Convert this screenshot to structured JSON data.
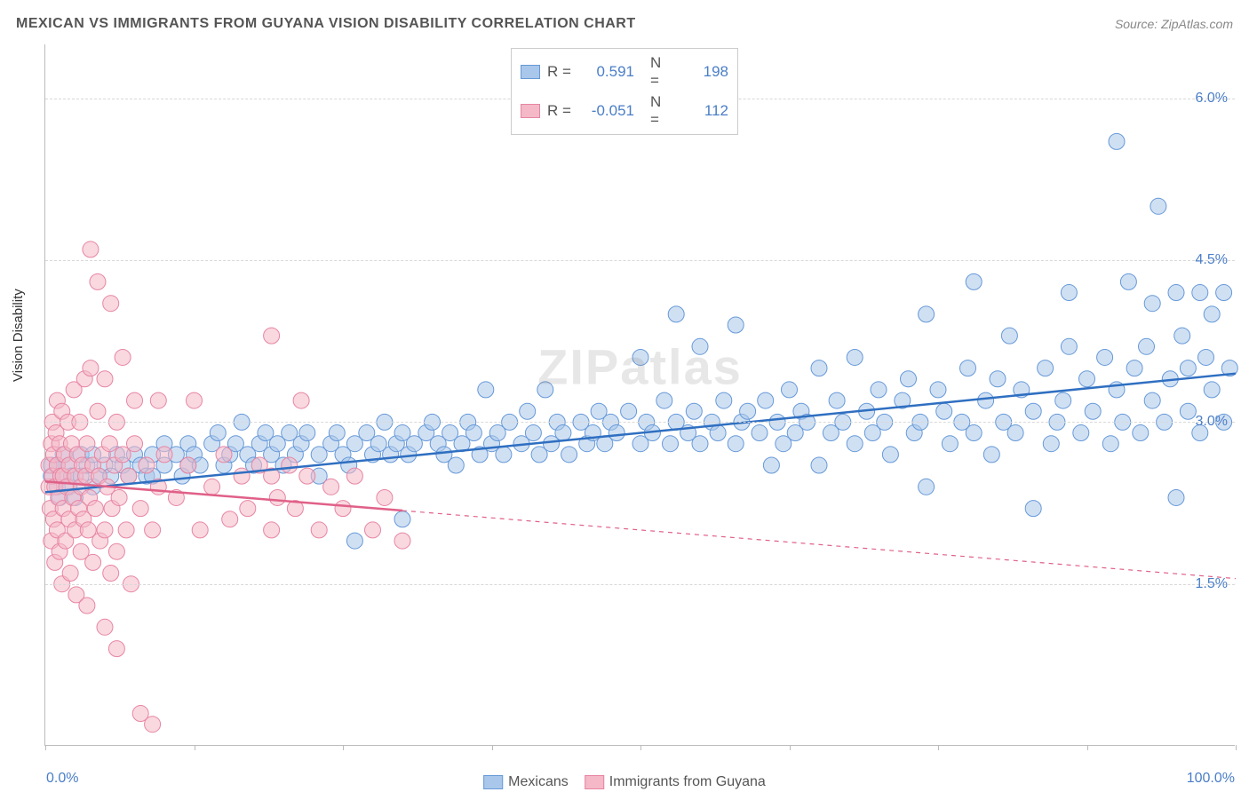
{
  "title": "MEXICAN VS IMMIGRANTS FROM GUYANA VISION DISABILITY CORRELATION CHART",
  "source": "Source: ZipAtlas.com",
  "watermark": "ZIPatlas",
  "ylabel": "Vision Disability",
  "chart": {
    "type": "scatter",
    "background_color": "#ffffff",
    "grid_color": "#d8d8d8",
    "axis_color": "#bbbbbb",
    "tick_label_color": "#4a7ec7",
    "xlim": [
      0,
      100
    ],
    "ylim": [
      0,
      6.5
    ],
    "xticks_minor": [
      0,
      12.5,
      25,
      37.5,
      50,
      62.5,
      75,
      87.5,
      100
    ],
    "yticks": [
      1.5,
      3.0,
      4.5,
      6.0
    ],
    "ytick_labels": [
      "1.5%",
      "3.0%",
      "4.5%",
      "6.0%"
    ],
    "xtick_labels": {
      "left": "0.0%",
      "right": "100.0%"
    },
    "marker_radius": 9,
    "marker_opacity": 0.55,
    "line_width": 2.5,
    "series": [
      {
        "name": "Mexicans",
        "color_fill": "#a9c7ea",
        "color_stroke": "#6699d8",
        "line_color": "#2f6fc1",
        "r": 0.591,
        "n": 198,
        "regression": {
          "x1": 0,
          "y1": 2.35,
          "x2": 100,
          "y2": 3.45,
          "solid_until": 100
        },
        "points": [
          [
            0.5,
            2.5
          ],
          [
            0.5,
            2.6
          ],
          [
            1,
            2.4
          ],
          [
            1,
            2.6
          ],
          [
            1.2,
            2.3
          ],
          [
            1.5,
            2.5
          ],
          [
            1.5,
            2.7
          ],
          [
            2,
            2.4
          ],
          [
            2,
            2.6
          ],
          [
            2.2,
            2.5
          ],
          [
            2.5,
            2.3
          ],
          [
            3,
            2.5
          ],
          [
            3,
            2.7
          ],
          [
            3.5,
            2.6
          ],
          [
            4,
            2.4
          ],
          [
            4,
            2.7
          ],
          [
            4.5,
            2.5
          ],
          [
            5,
            2.6
          ],
          [
            5.5,
            2.5
          ],
          [
            6,
            2.7
          ],
          [
            6.5,
            2.6
          ],
          [
            7,
            2.5
          ],
          [
            7.5,
            2.7
          ],
          [
            8,
            2.6
          ],
          [
            8.5,
            2.5
          ],
          [
            9,
            2.7
          ],
          [
            9,
            2.5
          ],
          [
            10,
            2.6
          ],
          [
            10,
            2.8
          ],
          [
            11,
            2.7
          ],
          [
            11.5,
            2.5
          ],
          [
            12,
            2.6
          ],
          [
            12,
            2.8
          ],
          [
            12.5,
            2.7
          ],
          [
            13,
            2.6
          ],
          [
            14,
            2.8
          ],
          [
            14.5,
            2.9
          ],
          [
            15,
            2.6
          ],
          [
            15.5,
            2.7
          ],
          [
            16,
            2.8
          ],
          [
            16.5,
            3.0
          ],
          [
            17,
            2.7
          ],
          [
            17.5,
            2.6
          ],
          [
            18,
            2.8
          ],
          [
            18.5,
            2.9
          ],
          [
            19,
            2.7
          ],
          [
            19.5,
            2.8
          ],
          [
            20,
            2.6
          ],
          [
            20.5,
            2.9
          ],
          [
            21,
            2.7
          ],
          [
            21.5,
            2.8
          ],
          [
            22,
            2.9
          ],
          [
            23,
            2.7
          ],
          [
            23,
            2.5
          ],
          [
            24,
            2.8
          ],
          [
            24.5,
            2.9
          ],
          [
            25,
            2.7
          ],
          [
            25.5,
            2.6
          ],
          [
            26,
            2.8
          ],
          [
            26,
            1.9
          ],
          [
            27,
            2.9
          ],
          [
            27.5,
            2.7
          ],
          [
            28,
            2.8
          ],
          [
            28.5,
            3.0
          ],
          [
            29,
            2.7
          ],
          [
            29.5,
            2.8
          ],
          [
            30,
            2.1
          ],
          [
            30,
            2.9
          ],
          [
            30.5,
            2.7
          ],
          [
            31,
            2.8
          ],
          [
            32,
            2.9
          ],
          [
            32.5,
            3.0
          ],
          [
            33,
            2.8
          ],
          [
            33.5,
            2.7
          ],
          [
            34,
            2.9
          ],
          [
            34.5,
            2.6
          ],
          [
            35,
            2.8
          ],
          [
            35.5,
            3.0
          ],
          [
            36,
            2.9
          ],
          [
            36.5,
            2.7
          ],
          [
            37,
            3.3
          ],
          [
            37.5,
            2.8
          ],
          [
            38,
            2.9
          ],
          [
            38.5,
            2.7
          ],
          [
            39,
            3.0
          ],
          [
            40,
            2.8
          ],
          [
            40.5,
            3.1
          ],
          [
            41,
            2.9
          ],
          [
            41.5,
            2.7
          ],
          [
            42,
            3.3
          ],
          [
            42.5,
            2.8
          ],
          [
            43,
            3.0
          ],
          [
            43.5,
            2.9
          ],
          [
            44,
            2.7
          ],
          [
            45,
            3.0
          ],
          [
            45.5,
            2.8
          ],
          [
            46,
            2.9
          ],
          [
            46.5,
            3.1
          ],
          [
            47,
            2.8
          ],
          [
            47.5,
            3.0
          ],
          [
            48,
            2.9
          ],
          [
            49,
            3.1
          ],
          [
            50,
            2.8
          ],
          [
            50,
            3.6
          ],
          [
            50.5,
            3.0
          ],
          [
            51,
            2.9
          ],
          [
            52,
            3.2
          ],
          [
            52.5,
            2.8
          ],
          [
            53,
            3.0
          ],
          [
            53,
            4.0
          ],
          [
            54,
            2.9
          ],
          [
            54.5,
            3.1
          ],
          [
            55,
            2.8
          ],
          [
            55,
            3.7
          ],
          [
            56,
            3.0
          ],
          [
            56.5,
            2.9
          ],
          [
            57,
            3.2
          ],
          [
            58,
            2.8
          ],
          [
            58,
            3.9
          ],
          [
            58.5,
            3.0
          ],
          [
            59,
            3.1
          ],
          [
            60,
            2.9
          ],
          [
            60.5,
            3.2
          ],
          [
            61,
            2.6
          ],
          [
            61.5,
            3.0
          ],
          [
            62,
            2.8
          ],
          [
            62.5,
            3.3
          ],
          [
            63,
            2.9
          ],
          [
            63.5,
            3.1
          ],
          [
            64,
            3.0
          ],
          [
            65,
            2.6
          ],
          [
            65,
            3.5
          ],
          [
            66,
            2.9
          ],
          [
            66.5,
            3.2
          ],
          [
            67,
            3.0
          ],
          [
            68,
            2.8
          ],
          [
            68,
            3.6
          ],
          [
            69,
            3.1
          ],
          [
            69.5,
            2.9
          ],
          [
            70,
            3.3
          ],
          [
            70.5,
            3.0
          ],
          [
            71,
            2.7
          ],
          [
            72,
            3.2
          ],
          [
            72.5,
            3.4
          ],
          [
            73,
            2.9
          ],
          [
            73.5,
            3.0
          ],
          [
            74,
            2.4
          ],
          [
            74,
            4.0
          ],
          [
            75,
            3.3
          ],
          [
            75.5,
            3.1
          ],
          [
            76,
            2.8
          ],
          [
            77,
            3.0
          ],
          [
            77.5,
            3.5
          ],
          [
            78,
            2.9
          ],
          [
            78,
            4.3
          ],
          [
            79,
            3.2
          ],
          [
            79.5,
            2.7
          ],
          [
            80,
            3.4
          ],
          [
            80.5,
            3.0
          ],
          [
            81,
            3.8
          ],
          [
            81.5,
            2.9
          ],
          [
            82,
            3.3
          ],
          [
            83,
            3.1
          ],
          [
            83,
            2.2
          ],
          [
            84,
            3.5
          ],
          [
            84.5,
            2.8
          ],
          [
            85,
            3.0
          ],
          [
            85.5,
            3.2
          ],
          [
            86,
            3.7
          ],
          [
            86,
            4.2
          ],
          [
            87,
            2.9
          ],
          [
            87.5,
            3.4
          ],
          [
            88,
            3.1
          ],
          [
            89,
            3.6
          ],
          [
            89.5,
            2.8
          ],
          [
            90,
            3.3
          ],
          [
            90,
            5.6
          ],
          [
            90.5,
            3.0
          ],
          [
            91,
            4.3
          ],
          [
            91.5,
            3.5
          ],
          [
            92,
            2.9
          ],
          [
            92.5,
            3.7
          ],
          [
            93,
            3.2
          ],
          [
            93,
            4.1
          ],
          [
            93.5,
            5.0
          ],
          [
            94,
            3.0
          ],
          [
            94.5,
            3.4
          ],
          [
            95,
            2.3
          ],
          [
            95,
            4.2
          ],
          [
            95.5,
            3.8
          ],
          [
            96,
            3.1
          ],
          [
            96,
            3.5
          ],
          [
            97,
            2.9
          ],
          [
            97,
            4.2
          ],
          [
            97.5,
            3.6
          ],
          [
            98,
            3.3
          ],
          [
            98,
            4.0
          ],
          [
            99,
            3.0
          ],
          [
            99,
            4.2
          ],
          [
            99.5,
            3.5
          ]
        ]
      },
      {
        "name": "Immigrants from Guyana",
        "color_fill": "#f4b8c7",
        "color_stroke": "#e785a3",
        "line_color": "#e06088",
        "r": -0.051,
        "n": 112,
        "regression": {
          "x1": 0,
          "y1": 2.45,
          "x2": 100,
          "y2": 1.55,
          "solid_until": 30
        },
        "points": [
          [
            0.3,
            2.4
          ],
          [
            0.3,
            2.6
          ],
          [
            0.4,
            2.2
          ],
          [
            0.5,
            2.8
          ],
          [
            0.5,
            1.9
          ],
          [
            0.6,
            2.5
          ],
          [
            0.6,
            3.0
          ],
          [
            0.7,
            2.1
          ],
          [
            0.7,
            2.7
          ],
          [
            0.8,
            1.7
          ],
          [
            0.8,
            2.4
          ],
          [
            0.9,
            2.9
          ],
          [
            1.0,
            2.0
          ],
          [
            1.0,
            3.2
          ],
          [
            1.0,
            2.6
          ],
          [
            1.1,
            2.3
          ],
          [
            1.2,
            1.8
          ],
          [
            1.2,
            2.8
          ],
          [
            1.3,
            2.5
          ],
          [
            1.4,
            1.5
          ],
          [
            1.4,
            3.1
          ],
          [
            1.5,
            2.2
          ],
          [
            1.5,
            2.5
          ],
          [
            1.6,
            2.7
          ],
          [
            1.7,
            1.9
          ],
          [
            1.8,
            2.4
          ],
          [
            1.9,
            3.0
          ],
          [
            2.0,
            2.1
          ],
          [
            2.0,
            2.6
          ],
          [
            2.1,
            1.6
          ],
          [
            2.2,
            2.8
          ],
          [
            2.3,
            2.3
          ],
          [
            2.4,
            3.3
          ],
          [
            2.5,
            2.0
          ],
          [
            2.5,
            2.5
          ],
          [
            2.6,
            1.4
          ],
          [
            2.7,
            2.7
          ],
          [
            2.8,
            2.2
          ],
          [
            2.9,
            3.0
          ],
          [
            3.0,
            2.4
          ],
          [
            3.0,
            1.8
          ],
          [
            3.1,
            2.6
          ],
          [
            3.2,
            2.1
          ],
          [
            3.3,
            3.4
          ],
          [
            3.4,
            2.5
          ],
          [
            3.5,
            1.3
          ],
          [
            3.5,
            2.8
          ],
          [
            3.6,
            2.0
          ],
          [
            3.7,
            2.3
          ],
          [
            3.8,
            3.5
          ],
          [
            3.8,
            4.6
          ],
          [
            4.0,
            2.6
          ],
          [
            4.0,
            1.7
          ],
          [
            4.2,
            2.2
          ],
          [
            4.4,
            3.1
          ],
          [
            4.4,
            4.3
          ],
          [
            4.5,
            2.5
          ],
          [
            4.6,
            1.9
          ],
          [
            4.8,
            2.7
          ],
          [
            5.0,
            2.0
          ],
          [
            5.0,
            3.4
          ],
          [
            5.0,
            1.1
          ],
          [
            5.2,
            2.4
          ],
          [
            5.4,
            2.8
          ],
          [
            5.5,
            1.6
          ],
          [
            5.5,
            4.1
          ],
          [
            5.6,
            2.2
          ],
          [
            5.8,
            2.6
          ],
          [
            6.0,
            3.0
          ],
          [
            6.0,
            1.8
          ],
          [
            6.0,
            0.9
          ],
          [
            6.2,
            2.3
          ],
          [
            6.5,
            2.7
          ],
          [
            6.5,
            3.6
          ],
          [
            6.8,
            2.0
          ],
          [
            7.0,
            2.5
          ],
          [
            7.2,
            1.5
          ],
          [
            7.5,
            2.8
          ],
          [
            7.5,
            3.2
          ],
          [
            8.0,
            2.2
          ],
          [
            8.0,
            0.3
          ],
          [
            8.5,
            2.6
          ],
          [
            9.0,
            2.0
          ],
          [
            9.0,
            0.2
          ],
          [
            9.5,
            2.4
          ],
          [
            9.5,
            3.2
          ],
          [
            10.0,
            2.7
          ],
          [
            11.0,
            2.3
          ],
          [
            12.0,
            2.6
          ],
          [
            12.5,
            3.2
          ],
          [
            13.0,
            2.0
          ],
          [
            14.0,
            2.4
          ],
          [
            15.0,
            2.7
          ],
          [
            15.5,
            2.1
          ],
          [
            16.5,
            2.5
          ],
          [
            17.0,
            2.2
          ],
          [
            18.0,
            2.6
          ],
          [
            19.0,
            2.0
          ],
          [
            19.0,
            2.5
          ],
          [
            19.0,
            3.8
          ],
          [
            19.5,
            2.3
          ],
          [
            20.5,
            2.6
          ],
          [
            21.0,
            2.2
          ],
          [
            21.5,
            3.2
          ],
          [
            22.0,
            2.5
          ],
          [
            23.0,
            2.0
          ],
          [
            24.0,
            2.4
          ],
          [
            25.0,
            2.2
          ],
          [
            26.0,
            2.5
          ],
          [
            27.5,
            2.0
          ],
          [
            28.5,
            2.3
          ],
          [
            30.0,
            1.9
          ]
        ]
      }
    ]
  },
  "legend_top_labels": {
    "r": "R =",
    "n": "N ="
  },
  "legend_bottom": [
    "Mexicans",
    "Immigrants from Guyana"
  ]
}
